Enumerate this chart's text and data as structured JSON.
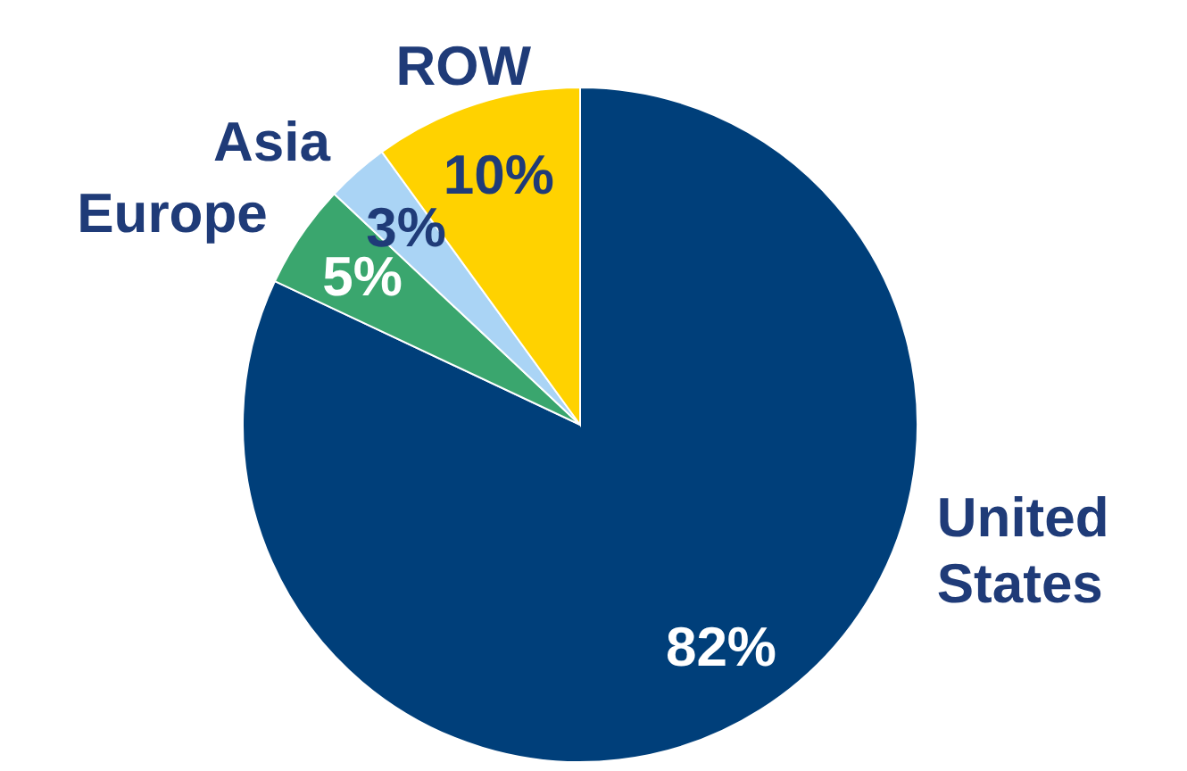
{
  "chart_data": {
    "type": "pie",
    "categories": [
      "United States",
      "Europe",
      "Asia",
      "ROW"
    ],
    "values": [
      82,
      5,
      3,
      10
    ],
    "value_labels": [
      "82%",
      "5%",
      "3%",
      "10%"
    ],
    "colors": [
      "#003f7a",
      "#3aa66e",
      "#aad4f5",
      "#ffd200"
    ]
  }
}
